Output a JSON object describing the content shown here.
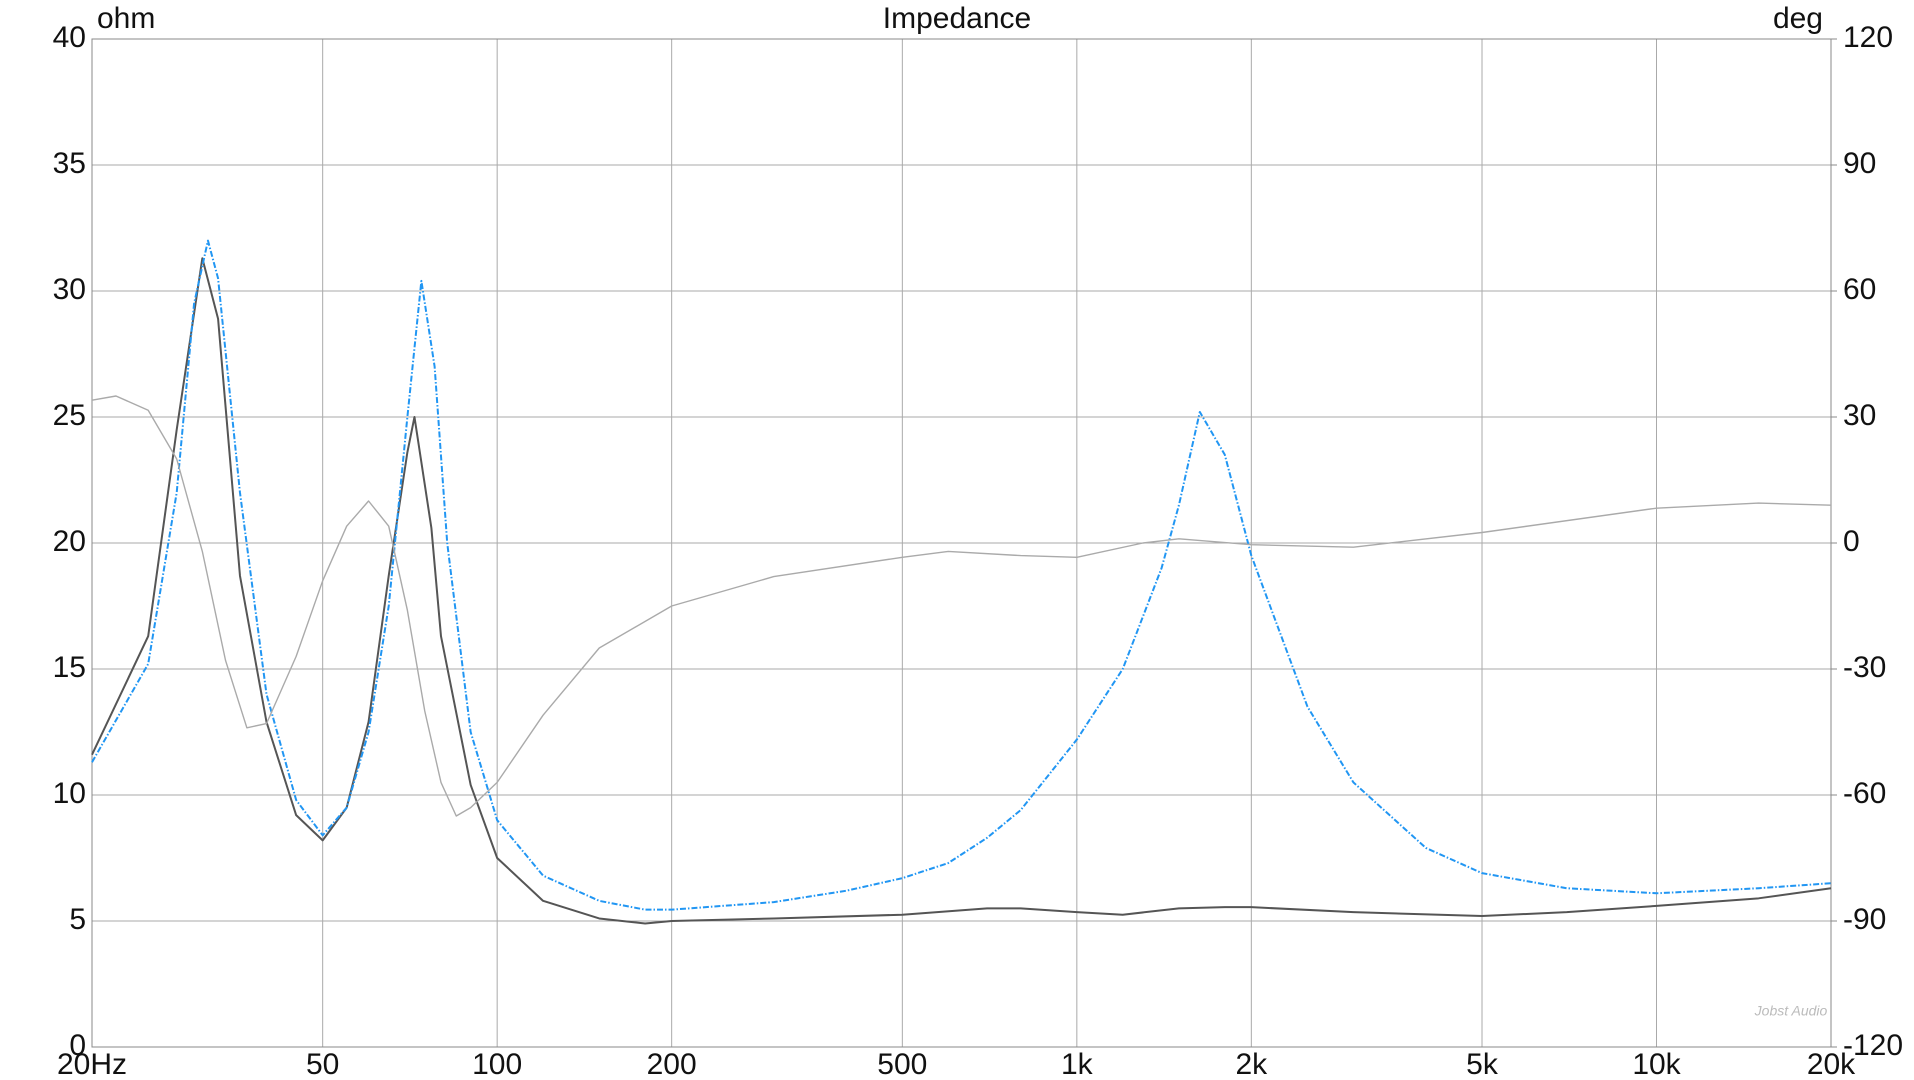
{
  "chart_data": {
    "type": "line",
    "title": "Impedance",
    "y_label": "ohm",
    "y2_label": "deg",
    "watermark": "Jobst Audio",
    "x_scale": "log",
    "grid": true,
    "xlim": [
      20,
      20000
    ],
    "xticks": [
      {
        "value": 20,
        "label": "20Hz"
      },
      50,
      100,
      200,
      500,
      {
        "value": 1000,
        "label": "1k"
      },
      {
        "value": 2000,
        "label": "2k"
      },
      {
        "value": 5000,
        "label": "5k"
      },
      {
        "value": 10000,
        "label": "10k"
      },
      {
        "value": 20000,
        "label": "20k"
      }
    ],
    "ylim": [
      0,
      40
    ],
    "yticks": [
      0,
      5,
      10,
      15,
      20,
      25,
      30,
      35,
      40
    ],
    "y2lim": [
      -120,
      120
    ],
    "y2ticks": [
      -120,
      -90,
      -60,
      -30,
      0,
      30,
      60,
      90,
      120
    ],
    "series": [
      {
        "color": "#555555",
        "x": [
          20,
          25,
          28,
          31,
          33,
          36,
          40,
          45,
          50,
          55,
          60,
          65,
          70,
          72,
          77,
          80,
          90,
          100,
          120,
          150,
          180,
          200,
          300,
          500,
          700,
          800,
          1000,
          1200,
          1500,
          1800,
          2000,
          3000,
          5000,
          7000,
          10000,
          15000,
          20000
        ],
        "values": [
          11.6,
          16.3,
          24.5,
          31.3,
          28.9,
          18.7,
          12.9,
          9.2,
          8.2,
          9.5,
          12.9,
          18.7,
          23.6,
          25.0,
          20.6,
          16.3,
          10.4,
          7.5,
          5.8,
          5.1,
          4.9,
          5.0,
          5.1,
          5.25,
          5.5,
          5.5,
          5.35,
          5.25,
          5.5,
          5.55,
          5.55,
          5.35,
          5.2,
          5.35,
          5.6,
          5.9,
          6.3
        ]
      },
      {
        "color": "#2196f3",
        "dash": true,
        "x": [
          20,
          25,
          28,
          30,
          31.7,
          33,
          36,
          40,
          45,
          50,
          55,
          60,
          65,
          70,
          74,
          78,
          82,
          90,
          100,
          120,
          150,
          180,
          200,
          300,
          400,
          500,
          600,
          700,
          800,
          1000,
          1200,
          1400,
          1500,
          1630,
          1800,
          2000,
          2500,
          3000,
          4000,
          5000,
          7000,
          10000,
          15000,
          20000
        ],
        "values": [
          11.3,
          15.2,
          22.0,
          29.5,
          32.0,
          30.5,
          22,
          14,
          9.8,
          8.4,
          9.5,
          12.5,
          17.5,
          25,
          30.4,
          27,
          20,
          12.5,
          9.0,
          6.8,
          5.8,
          5.45,
          5.45,
          5.75,
          6.2,
          6.7,
          7.3,
          8.3,
          9.4,
          12.2,
          15.0,
          19,
          21.5,
          25.2,
          23.5,
          19.5,
          13.5,
          10.5,
          7.9,
          6.9,
          6.3,
          6.1,
          6.3,
          6.5
        ]
      },
      {
        "color": "#aaaaaa",
        "axis": "y2",
        "x": [
          20,
          22,
          25,
          28,
          31,
          34,
          37,
          40,
          45,
          50,
          55,
          60,
          65,
          70,
          75,
          80,
          85,
          90,
          100,
          120,
          150,
          200,
          300,
          500,
          600,
          800,
          1000,
          1300,
          1500,
          2000,
          3000,
          5000,
          10000,
          15000,
          20000
        ],
        "values": [
          34,
          35,
          31.6,
          20,
          -2,
          -28,
          -44,
          -43,
          -27,
          -9,
          4,
          10,
          4,
          -16,
          -40,
          -57,
          -65,
          -63,
          -57,
          -41,
          -25,
          -15,
          -8,
          -3.4,
          -2,
          -3,
          -3.4,
          0,
          1,
          -0.4,
          -1,
          2.5,
          8.3,
          9.5,
          9
        ]
      }
    ]
  }
}
